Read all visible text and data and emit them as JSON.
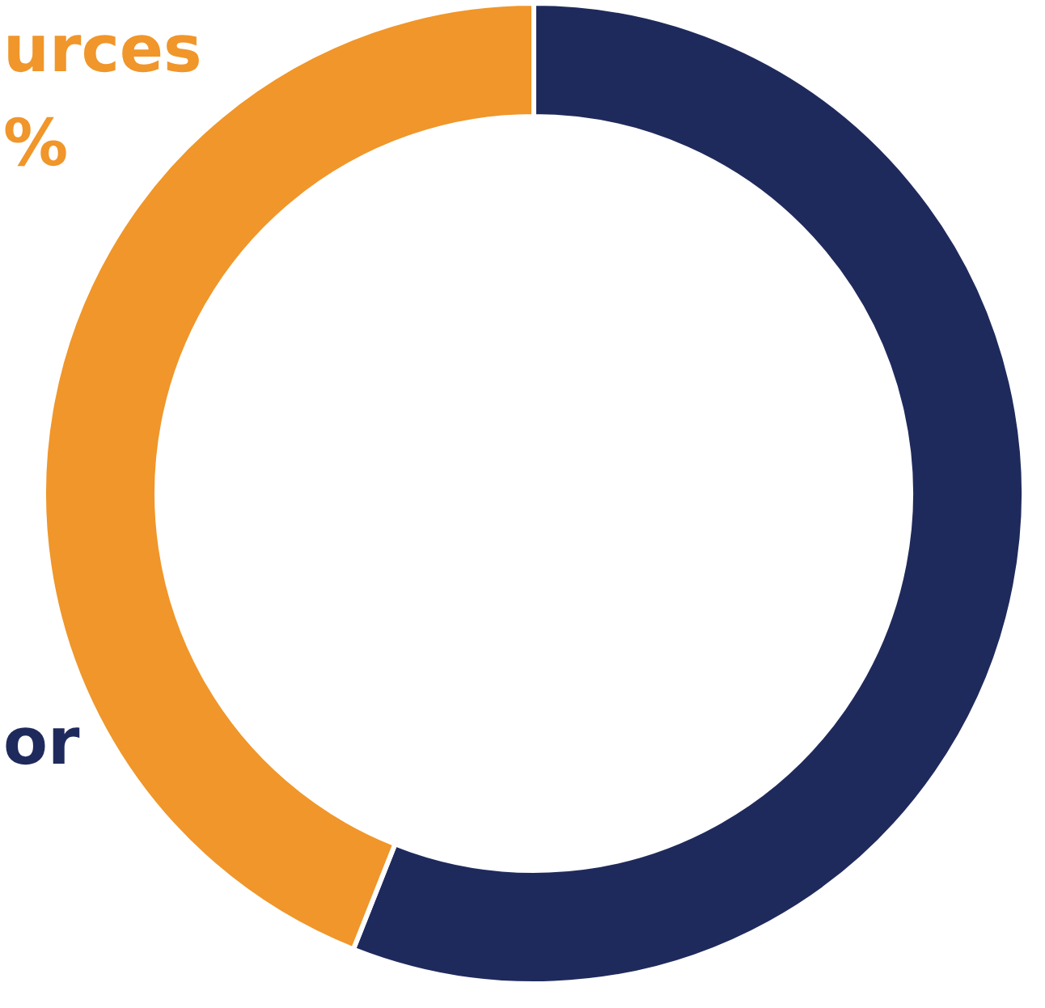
{
  "chart_data": {
    "type": "donut",
    "categories": [
      null,
      null
    ],
    "values": [
      56,
      44
    ],
    "colors": [
      "#1f2a5c",
      "#f0962a"
    ],
    "annotations": [
      "urces\n%",
      "or"
    ]
  }
}
